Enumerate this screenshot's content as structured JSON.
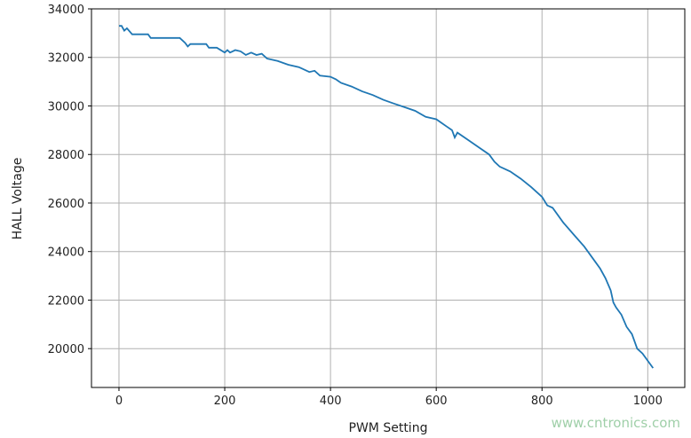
{
  "chart_data": {
    "type": "line",
    "title": "",
    "xlabel": "PWM Setting",
    "ylabel": "HALL Voltage",
    "xlim": [
      -52,
      1070
    ],
    "ylim": [
      18400,
      34000
    ],
    "xticks": [
      0,
      200,
      400,
      600,
      800,
      1000
    ],
    "yticks": [
      20000,
      22000,
      24000,
      26000,
      28000,
      30000,
      32000,
      34000
    ],
    "grid": true,
    "line_color": "#1f77b4",
    "series": [
      {
        "x": [
          0,
          5,
          10,
          15,
          25,
          55,
          60,
          115,
          125,
          130,
          135,
          165,
          170,
          185,
          200,
          205,
          210,
          220,
          230,
          240,
          250,
          260,
          270,
          280,
          300,
          320,
          340,
          345,
          360,
          370,
          380,
          400,
          410,
          420,
          440,
          460,
          480,
          500,
          520,
          540,
          560,
          580,
          600,
          610,
          620,
          630,
          635,
          640,
          660,
          680,
          700,
          710,
          720,
          740,
          760,
          780,
          800,
          810,
          820,
          840,
          860,
          880,
          900,
          910,
          920,
          930,
          935,
          940,
          950,
          960,
          970,
          980,
          990,
          1000,
          1010
        ],
        "y": [
          33300,
          33300,
          33100,
          33200,
          32950,
          32950,
          32800,
          32800,
          32600,
          32450,
          32550,
          32550,
          32400,
          32400,
          32200,
          32300,
          32200,
          32300,
          32250,
          32100,
          32200,
          32100,
          32150,
          31950,
          31850,
          31700,
          31600,
          31550,
          31400,
          31450,
          31250,
          31200,
          31100,
          30950,
          30800,
          30600,
          30450,
          30250,
          30100,
          29950,
          29800,
          29550,
          29450,
          29300,
          29150,
          29000,
          28700,
          28900,
          28600,
          28300,
          28000,
          27700,
          27500,
          27300,
          27000,
          26650,
          26250,
          25900,
          25800,
          25200,
          24700,
          24200,
          23600,
          23300,
          22900,
          22400,
          21900,
          21700,
          21400,
          20900,
          20600,
          20000,
          19800,
          19500,
          19200
        ]
      }
    ]
  },
  "watermark": "www.cntronics.com"
}
